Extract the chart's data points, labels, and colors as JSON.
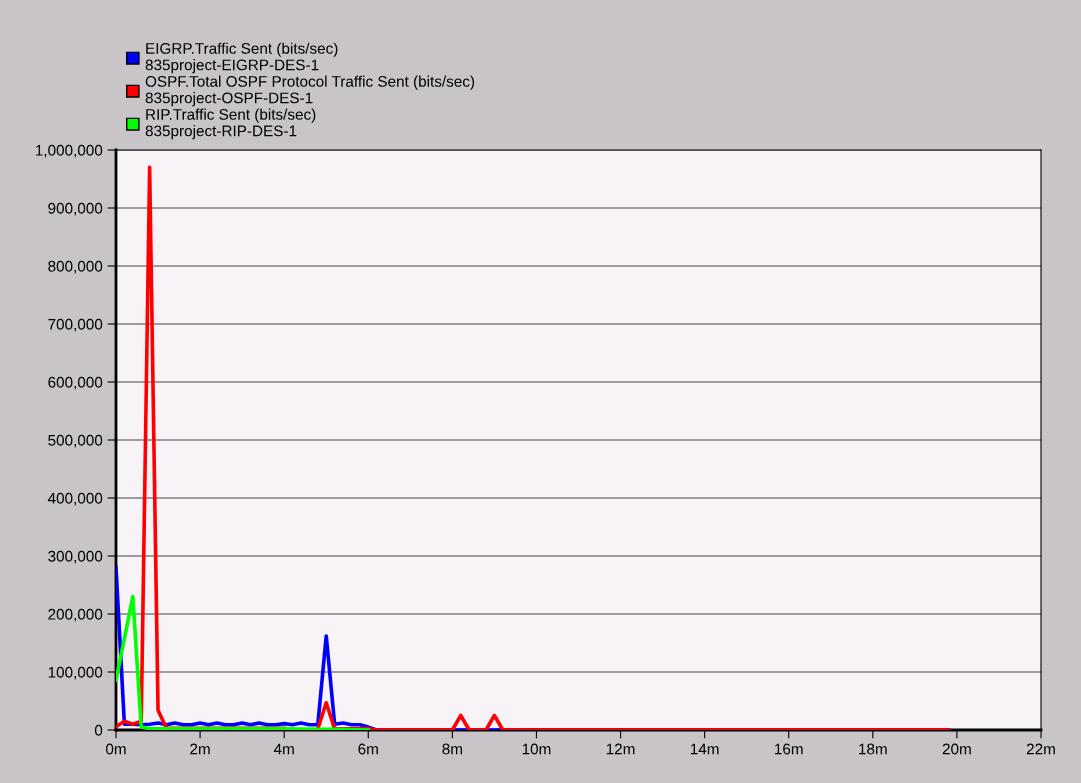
{
  "chart_data": {
    "type": "line",
    "x": [
      0,
      0.2,
      0.4,
      0.6,
      0.8,
      1.0,
      1.2,
      1.4,
      1.6,
      1.8,
      2.0,
      2.2,
      2.4,
      2.6,
      2.8,
      3.0,
      3.2,
      3.4,
      3.6,
      3.8,
      4.0,
      4.2,
      4.4,
      4.6,
      4.8,
      5.0,
      5.2,
      5.4,
      5.6,
      5.8,
      6.0,
      6.2,
      19.8
    ],
    "series": [
      {
        "name": "EIGRP.Traffic Sent (bits/sec)\n835project-EIGRP-DES-1",
        "color": "#0000ff",
        "values": [
          280000,
          10000,
          10000,
          9000,
          10000,
          12000,
          9000,
          12000,
          9000,
          9000,
          12000,
          9000,
          12000,
          9000,
          9000,
          12000,
          9000,
          12000,
          9000,
          9000,
          11000,
          9000,
          12000,
          9000,
          9000,
          162000,
          10000,
          12000,
          9000,
          9000,
          5000,
          0,
          0
        ]
      },
      {
        "name": "OSPF.Total OSPF Protocol Traffic Sent (bits/sec)\n835project-OSPF-DES-1",
        "color": "#ff0000",
        "x": [
          0,
          0.2,
          0.4,
          0.6,
          0.8,
          1.0,
          1.2,
          1.4,
          1.6,
          1.8,
          2.0,
          2.2,
          2.4,
          2.6,
          2.8,
          3.0,
          3.2,
          3.4,
          3.6,
          3.8,
          4.0,
          4.2,
          4.4,
          4.6,
          4.8,
          5.0,
          5.2,
          5.4,
          5.6,
          5.8,
          6.0,
          6.2,
          8.0,
          8.2,
          8.4,
          8.8,
          9.0,
          9.2,
          19.8
        ],
        "values": [
          6000,
          15000,
          10000,
          15000,
          970000,
          34000,
          3000,
          3000,
          3000,
          3000,
          3000,
          3000,
          3000,
          3000,
          3000,
          3000,
          3000,
          3000,
          3000,
          3000,
          3000,
          null,
          null,
          null,
          2000,
          47000,
          2000,
          2000,
          2000,
          2000,
          2000,
          0,
          0,
          25000,
          0,
          0,
          25000,
          0,
          0
        ]
      },
      {
        "name": "RIP.Traffic Sent (bits/sec)\n835project-RIP-DES-1",
        "color": "#00ff00",
        "x": [
          0,
          0.4,
          0.6,
          0.8,
          1.0,
          2.0,
          3.0,
          4.0,
          4.8,
          5.0,
          5.2,
          6.0
        ],
        "values": [
          86000,
          230000,
          5000,
          2000,
          2000,
          2000,
          2000,
          2000,
          1000,
          1000,
          1000,
          0
        ]
      }
    ],
    "xlim": [
      0,
      22
    ],
    "xticks": [
      {
        "value": 0,
        "label": "0m"
      },
      {
        "value": 2,
        "label": "2m"
      },
      {
        "value": 4,
        "label": "4m"
      },
      {
        "value": 6,
        "label": "6m"
      },
      {
        "value": 8,
        "label": "8m"
      },
      {
        "value": 10,
        "label": "10m"
      },
      {
        "value": 12,
        "label": "12m"
      },
      {
        "value": 14,
        "label": "14m"
      },
      {
        "value": 16,
        "label": "16m"
      },
      {
        "value": 18,
        "label": "18m"
      },
      {
        "value": 20,
        "label": "20m"
      },
      {
        "value": 22,
        "label": "22m"
      }
    ],
    "ylim": [
      0,
      1000000
    ],
    "yticks": [
      {
        "value": 0,
        "label": "0"
      },
      {
        "value": 100000,
        "label": "100,000"
      },
      {
        "value": 200000,
        "label": "200,000"
      },
      {
        "value": 300000,
        "label": "300,000"
      },
      {
        "value": 400000,
        "label": "400,000"
      },
      {
        "value": 500000,
        "label": "500,000"
      },
      {
        "value": 600000,
        "label": "600,000"
      },
      {
        "value": 700000,
        "label": "700,000"
      },
      {
        "value": 800000,
        "label": "800,000"
      },
      {
        "value": 900000,
        "label": "900,000"
      },
      {
        "value": 1000000,
        "label": "1,000,000"
      }
    ],
    "grid": "y",
    "legend": "top left",
    "line_style": "solid"
  }
}
